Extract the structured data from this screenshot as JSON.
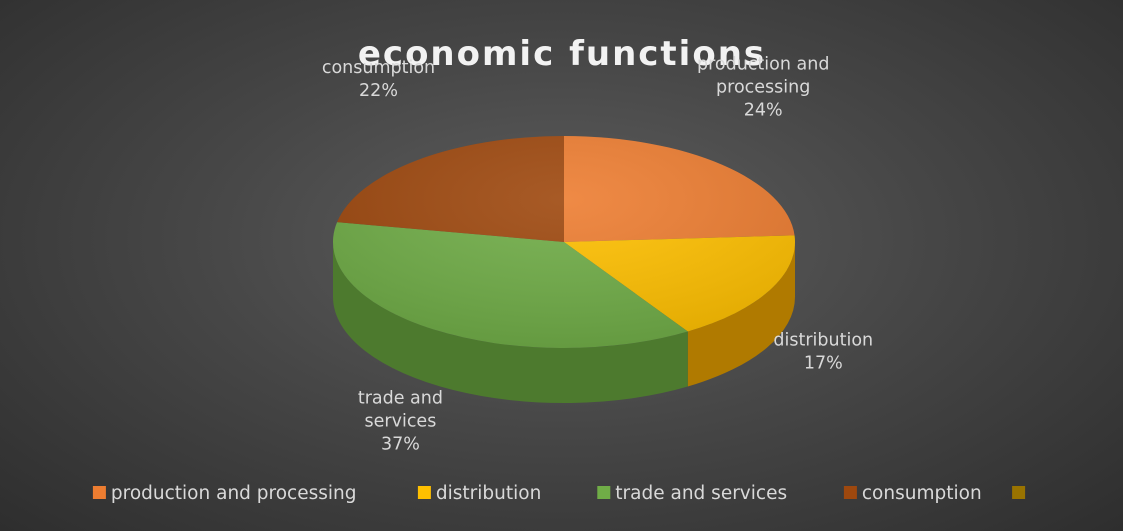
{
  "chart_data": {
    "type": "pie",
    "style": "3d",
    "title": "economic functions",
    "categories": [
      "production and processing",
      "distribution",
      "trade and services",
      "consumption",
      ""
    ],
    "values": [
      24,
      17,
      37,
      22,
      0
    ],
    "labels": [
      "24%",
      "17%",
      "37%",
      "22%",
      ""
    ],
    "colors": [
      "#ed7d31",
      "#ffc000",
      "#70ad47",
      "#9e480e",
      "#997300"
    ],
    "side_colors": [
      "#b45a1a",
      "#b07a00",
      "#4d7a2e",
      "#6e3008",
      "#6b5000"
    ],
    "legend_position": "bottom"
  }
}
